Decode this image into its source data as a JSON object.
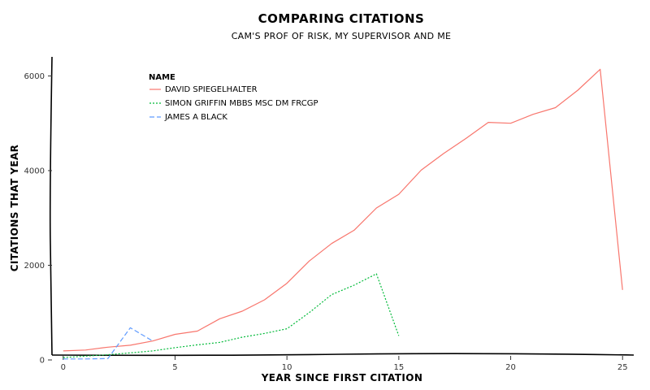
{
  "chart_data": {
    "type": "line",
    "title": "COMPARING CITATIONS",
    "subtitle": "CAM'S PROF OF RISK, MY SUPERVISOR AND ME",
    "xlabel": "YEAR SINCE FIRST CITATION",
    "ylabel": "CITATIONS THAT YEAR",
    "xlim": [
      -0.5,
      25.5
    ],
    "ylim": [
      0,
      6300
    ],
    "xticks": [
      0,
      5,
      10,
      15,
      20,
      25
    ],
    "yticks": [
      0,
      2000,
      4000,
      6000
    ],
    "legend_title": "NAME",
    "legend_position": "top-left",
    "grid": false,
    "series": [
      {
        "name": "DAVID SPIEGELHALTER",
        "color": "#F8766D",
        "style": "solid",
        "x": [
          0,
          1,
          2,
          3,
          4,
          5,
          6,
          7,
          8,
          9,
          10,
          11,
          12,
          13,
          14,
          15,
          16,
          17,
          18,
          19,
          20,
          21,
          22,
          23,
          24,
          25
        ],
        "values": [
          190,
          210,
          270,
          310,
          400,
          540,
          610,
          870,
          1030,
          1270,
          1620,
          2090,
          2460,
          2740,
          3210,
          3500,
          4010,
          4360,
          4680,
          5020,
          5000,
          5190,
          5330,
          5700,
          6140,
          1480
        ]
      },
      {
        "name": "SIMON GRIFFIN MBBS MSC DM FRCGP",
        "color": "#00BA38",
        "style": "dotted",
        "x": [
          0,
          1,
          2,
          3,
          4,
          5,
          6,
          7,
          8,
          9,
          10,
          11,
          12,
          13,
          14,
          15
        ],
        "values": [
          50,
          80,
          110,
          150,
          190,
          260,
          320,
          370,
          480,
          560,
          660,
          1000,
          1380,
          1580,
          1820,
          510
        ]
      },
      {
        "name": "JAMES A BLACK",
        "color": "#619CFF",
        "style": "dashed",
        "x": [
          0,
          1,
          2,
          3,
          4
        ],
        "values": [
          20,
          20,
          30,
          680,
          400
        ]
      }
    ]
  }
}
